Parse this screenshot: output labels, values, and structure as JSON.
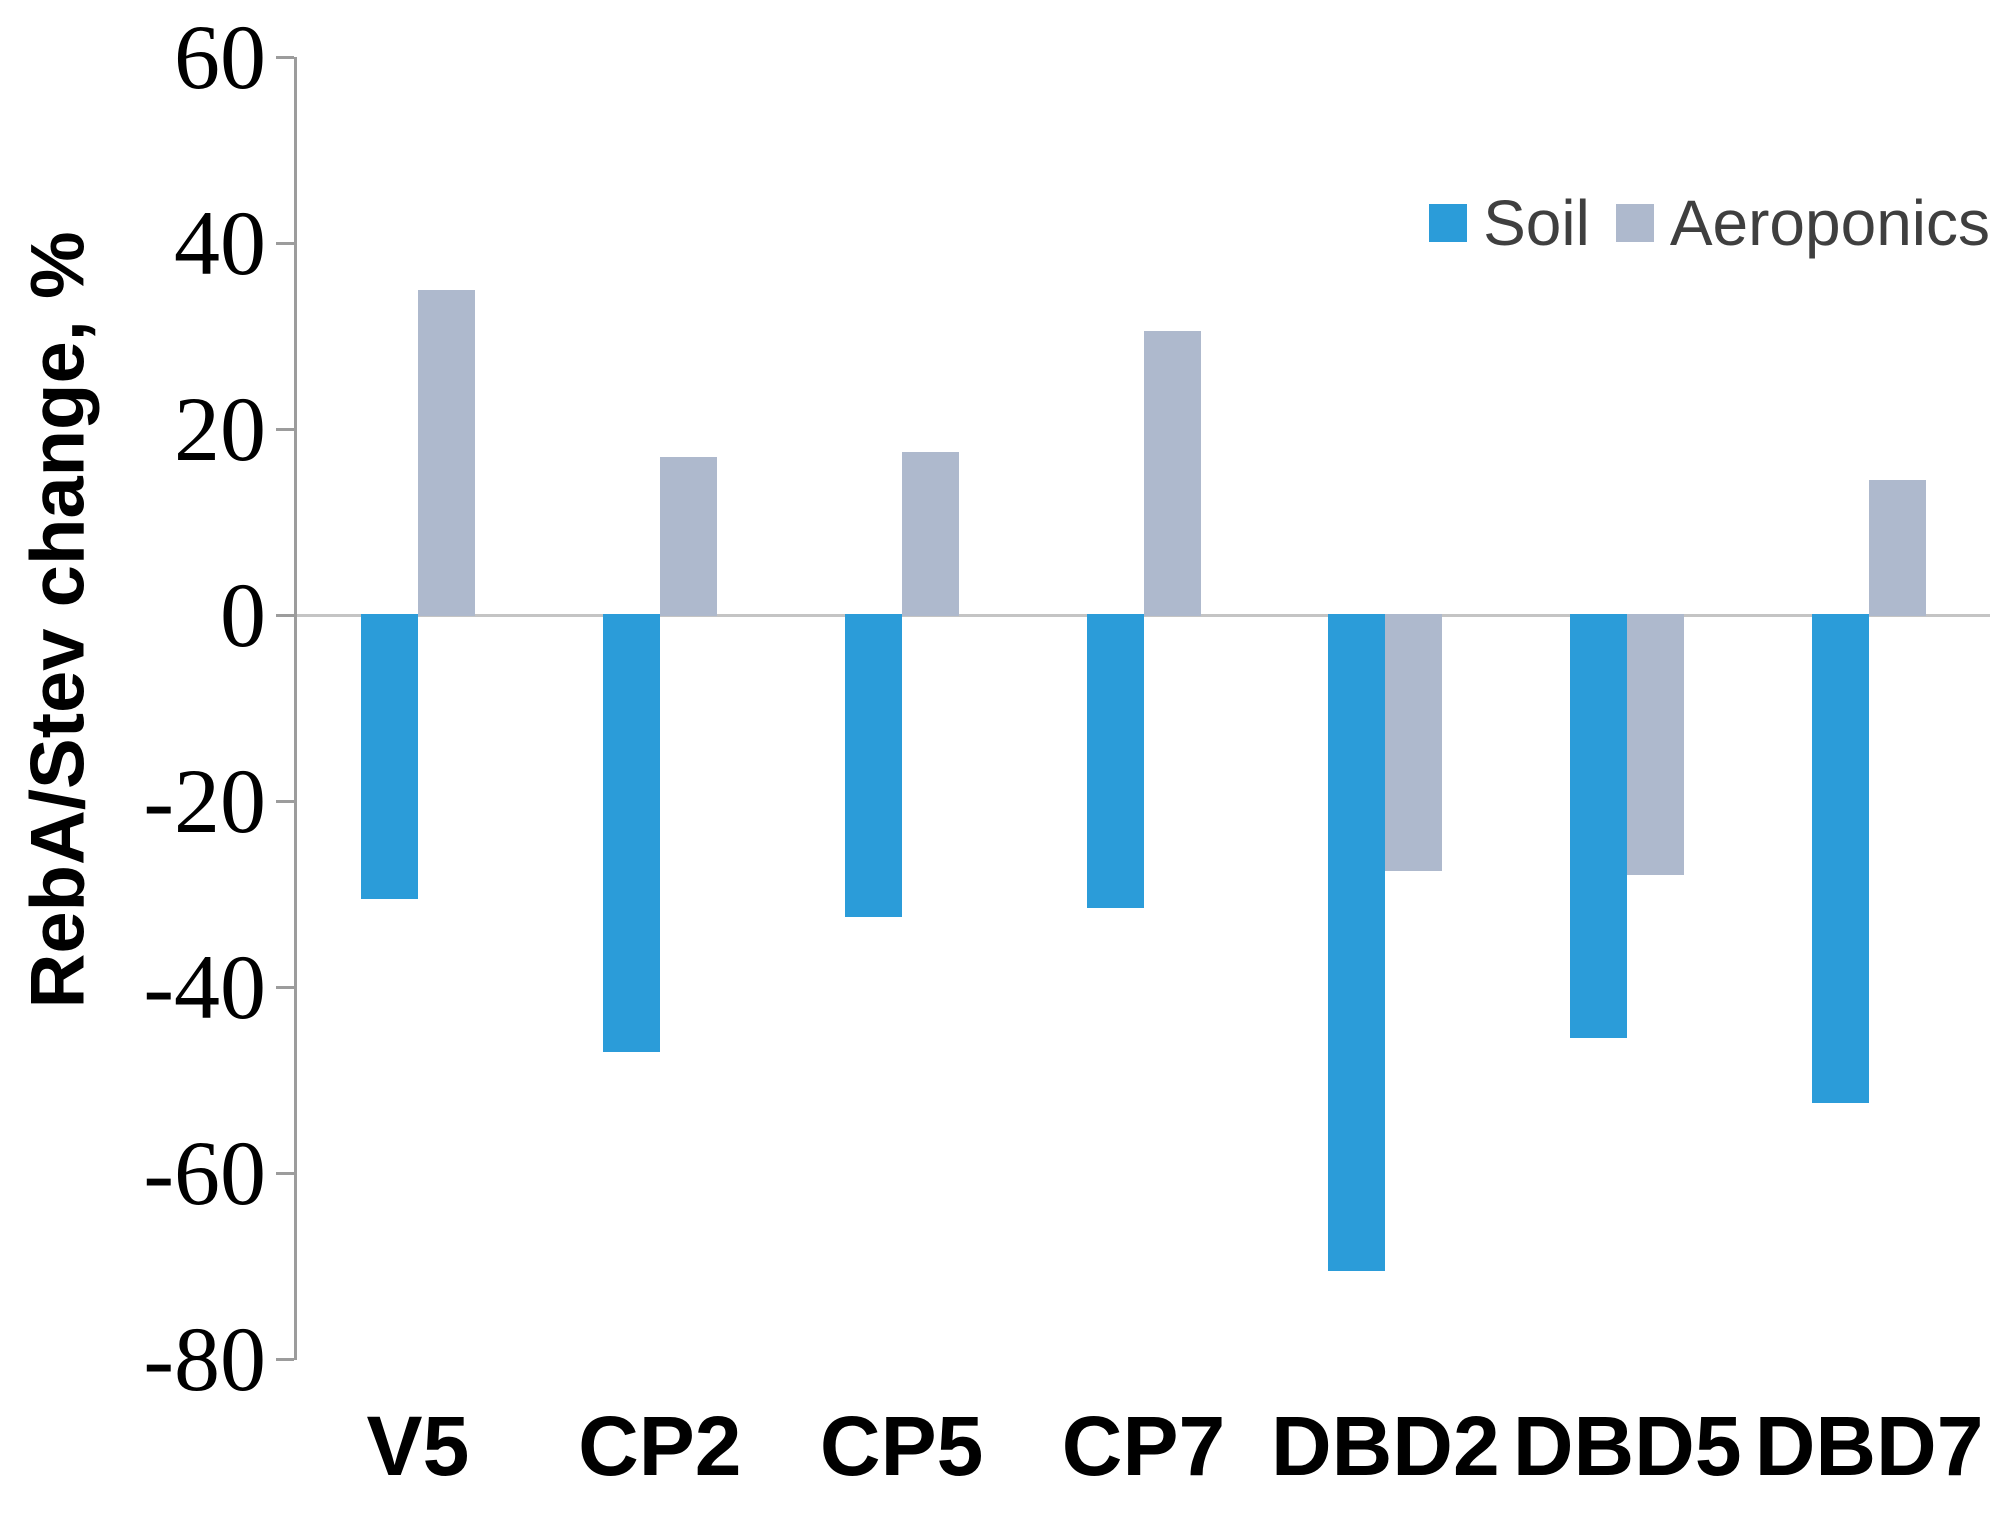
{
  "chart_data": {
    "type": "bar",
    "title": "",
    "xlabel": "",
    "ylabel": "RebA/Stev change, %",
    "categories": [
      "V5",
      "CP2",
      "CP5",
      "CP7",
      "DBD2",
      "DBD5",
      "DBD7"
    ],
    "series": [
      {
        "name": "Soil",
        "color": "#2B9CD9",
        "values": [
          -30.5,
          -47.0,
          -32.5,
          -31.5,
          -70.5,
          -45.5,
          -52.5
        ]
      },
      {
        "name": "Aeroponics",
        "color": "#AEB9CD",
        "values": [
          35.0,
          17.0,
          17.5,
          30.5,
          -27.5,
          -28.0,
          14.5
        ]
      }
    ],
    "ylim": [
      -80,
      60
    ],
    "ytick_step": 20,
    "yticks": [
      60,
      40,
      20,
      0,
      -20,
      -40,
      -60,
      -80
    ],
    "ytick_labels": [
      "60",
      "40",
      "20",
      "0",
      "-20",
      "-40",
      "-60",
      "-80"
    ],
    "grid": false,
    "zero_line": true,
    "legend_position": "top-right",
    "colors": {
      "axis_line": "#9C9C9C",
      "zero_line": "#C4C4C4",
      "tick_text": "#000000",
      "category_text": "#000000",
      "legend_text": "#3F3F3F",
      "background": "#FFFFFF"
    }
  }
}
